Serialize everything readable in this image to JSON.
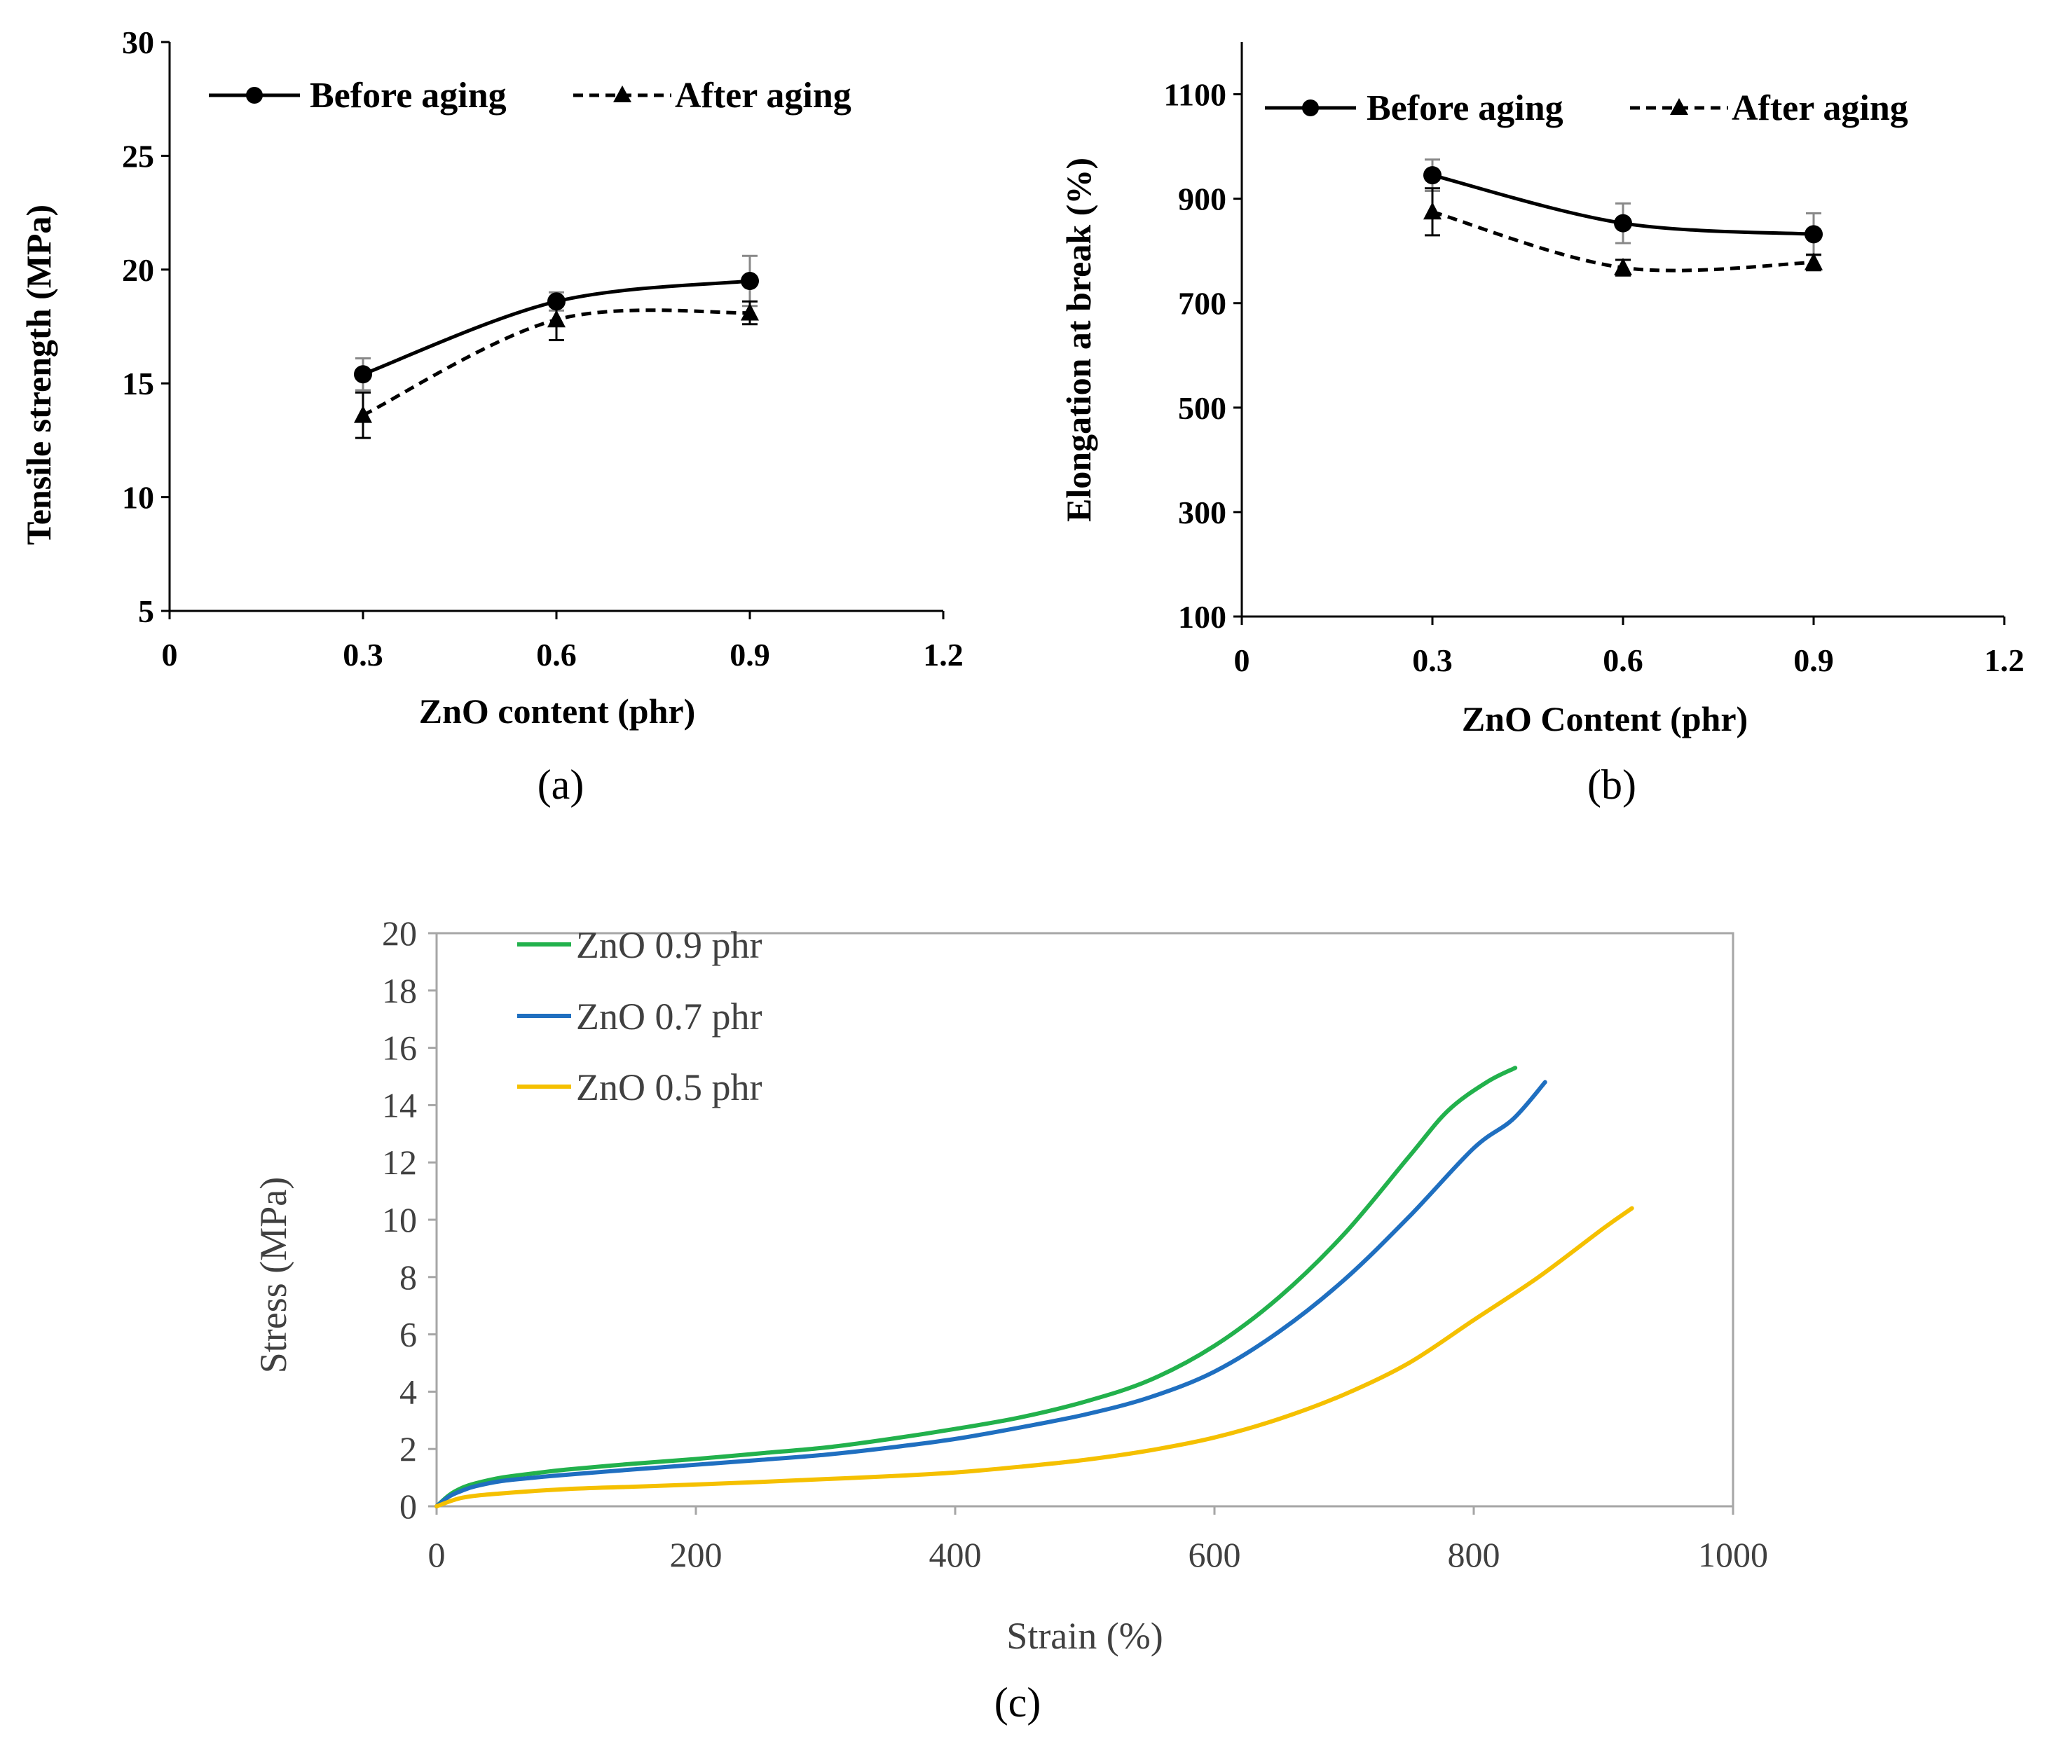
{
  "chart_data": [
    {
      "id": "a",
      "type": "line",
      "panel_label": "(a)",
      "xlabel": "ZnO content (phr)",
      "ylabel": "Tensile strength (MPa)",
      "xlim": [
        0,
        1.2
      ],
      "ylim": [
        5,
        30
      ],
      "xticks": [
        0,
        0.3,
        0.6,
        0.9,
        1.2
      ],
      "xtick_labels": [
        "0",
        "0.3",
        "0.6",
        "0.9",
        "1.2"
      ],
      "yticks": [
        5,
        10,
        15,
        20,
        25,
        30
      ],
      "ytick_labels": [
        "5",
        "10",
        "15",
        "20",
        "25",
        "30"
      ],
      "legend_position": "top",
      "series": [
        {
          "name": "Before aging",
          "style": "solid",
          "marker": "circle",
          "x": [
            0.3,
            0.6,
            0.9
          ],
          "y": [
            15.4,
            18.6,
            19.5
          ],
          "err": [
            0.7,
            0.4,
            1.1
          ]
        },
        {
          "name": "After aging",
          "style": "dashed",
          "marker": "triangle",
          "x": [
            0.3,
            0.6,
            0.9
          ],
          "y": [
            13.6,
            17.8,
            18.1
          ],
          "err": [
            1.0,
            0.9,
            0.5
          ]
        }
      ]
    },
    {
      "id": "b",
      "type": "line",
      "panel_label": "(b)",
      "xlabel": "ZnO Content (phr)",
      "ylabel": "Elongation at break (%)",
      "xlim": [
        0,
        1.2
      ],
      "ylim": [
        100,
        1200
      ],
      "xticks": [
        0,
        0.3,
        0.6,
        0.9,
        1.2
      ],
      "xtick_labels": [
        "0",
        "0.3",
        "0.6",
        "0.9",
        "1.2"
      ],
      "yticks": [
        100,
        300,
        500,
        700,
        900,
        1100
      ],
      "ytick_labels": [
        "100",
        "300",
        "500",
        "700",
        "900",
        "1100"
      ],
      "legend_position": "top",
      "series": [
        {
          "name": "Before aging",
          "style": "solid",
          "marker": "circle",
          "x": [
            0.3,
            0.6,
            0.9
          ],
          "y": [
            945,
            853,
            832
          ],
          "err": [
            30,
            38,
            40
          ]
        },
        {
          "name": "After aging",
          "style": "dashed",
          "marker": "triangle",
          "x": [
            0.3,
            0.6,
            0.9
          ],
          "y": [
            875,
            768,
            778
          ],
          "err": [
            45,
            15,
            15
          ]
        }
      ]
    },
    {
      "id": "c",
      "type": "line",
      "panel_label": "(c)",
      "xlabel": "Strain (%)",
      "ylabel": "Stress  (MPa)",
      "xlim": [
        0,
        1000
      ],
      "ylim": [
        0,
        20
      ],
      "xticks": [
        0,
        200,
        400,
        600,
        800,
        1000
      ],
      "xtick_labels": [
        "0",
        "200",
        "400",
        "600",
        "800",
        "1000"
      ],
      "yticks": [
        0,
        2,
        4,
        6,
        8,
        10,
        12,
        14,
        16,
        18,
        20
      ],
      "ytick_labels": [
        "0",
        "2",
        "4",
        "6",
        "8",
        "10",
        "12",
        "14",
        "16",
        "18",
        "20"
      ],
      "legend_position": "top-left",
      "series": [
        {
          "name": "ZnO 0.9 phr",
          "color": "#22b14c",
          "x": [
            0,
            10,
            20,
            30,
            50,
            75,
            100,
            150,
            200,
            250,
            300,
            350,
            400,
            450,
            500,
            550,
            600,
            650,
            700,
            750,
            780,
            810,
            832
          ],
          "y": [
            0,
            0.4,
            0.65,
            0.8,
            1.0,
            1.15,
            1.28,
            1.48,
            1.65,
            1.85,
            2.05,
            2.35,
            2.7,
            3.1,
            3.65,
            4.4,
            5.6,
            7.3,
            9.5,
            12.2,
            13.8,
            14.8,
            15.3
          ]
        },
        {
          "name": "ZnO 0.7 phr",
          "color": "#1f6fc0",
          "x": [
            0,
            10,
            20,
            30,
            50,
            75,
            100,
            150,
            200,
            250,
            300,
            350,
            400,
            450,
            500,
            550,
            600,
            650,
            700,
            750,
            800,
            830,
            855
          ],
          "y": [
            0,
            0.35,
            0.55,
            0.7,
            0.88,
            1.0,
            1.1,
            1.28,
            1.45,
            1.62,
            1.8,
            2.05,
            2.35,
            2.75,
            3.2,
            3.8,
            4.7,
            6.1,
            7.9,
            10.1,
            12.5,
            13.5,
            14.8
          ]
        },
        {
          "name": "ZnO 0.5 phr",
          "color": "#f5c000",
          "x": [
            0,
            20,
            50,
            100,
            150,
            200,
            250,
            300,
            350,
            400,
            450,
            500,
            550,
            600,
            650,
            700,
            750,
            800,
            850,
            900,
            922
          ],
          "y": [
            0,
            0.3,
            0.45,
            0.6,
            0.68,
            0.76,
            0.85,
            0.95,
            1.05,
            1.18,
            1.38,
            1.62,
            1.95,
            2.4,
            3.05,
            3.9,
            5.0,
            6.5,
            8.0,
            9.7,
            10.4
          ]
        }
      ]
    }
  ]
}
